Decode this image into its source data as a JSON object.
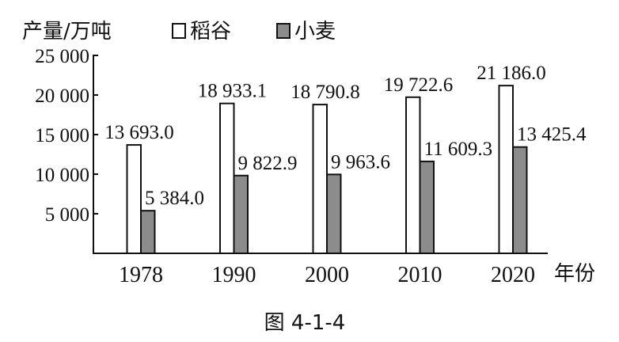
{
  "chart_data": {
    "type": "bar",
    "ylabel": "产量/万吨",
    "xlabel": "年份",
    "caption": "图 4-1-4",
    "categories": [
      "1978",
      "1990",
      "2000",
      "2010",
      "2020"
    ],
    "series": [
      {
        "name": "稻谷",
        "values": [
          13693.0,
          18933.1,
          18790.8,
          19722.6,
          21186.0
        ],
        "labels": [
          "13 693.0",
          "18 933.1",
          "18 790.8",
          "19 722.6",
          "21 186.0"
        ],
        "color": "#ffffff"
      },
      {
        "name": "小麦",
        "values": [
          5384.0,
          9822.9,
          9963.6,
          11609.3,
          13425.4
        ],
        "labels": [
          "5 384.0",
          "9 822.9",
          "9 963.6",
          "11 609.3",
          "13 425.4"
        ],
        "color": "#8c8c8c"
      }
    ],
    "yticks": [
      5000,
      10000,
      15000,
      20000,
      25000
    ],
    "ytick_labels": [
      "5 000",
      "10 000",
      "15 000",
      "20 000",
      "25 000"
    ],
    "ylim": [
      0,
      25000
    ],
    "grid": false,
    "legend_position": "top"
  }
}
